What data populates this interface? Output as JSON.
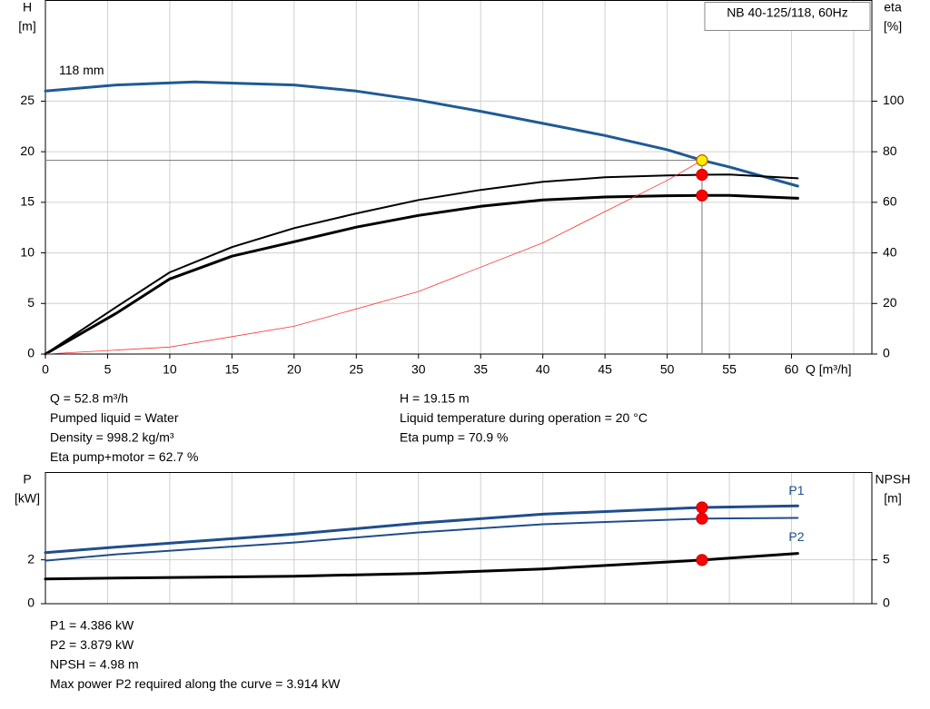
{
  "chart_data": [
    {
      "type": "line",
      "title": "NB 40-125/118, 60Hz",
      "ylabel": [
        "H",
        "[m]"
      ],
      "y2label": [
        "eta",
        "[%]"
      ],
      "xlabel": "Q [m³/h]",
      "xlim": [
        0,
        65
      ],
      "xticks": [
        0,
        5,
        10,
        15,
        20,
        25,
        30,
        35,
        40,
        45,
        50,
        55,
        60
      ],
      "ylim": [
        0,
        35
      ],
      "yticks": [
        0,
        5,
        10,
        15,
        20,
        25
      ],
      "y2lim": [
        0,
        140
      ],
      "y2ticks": [
        0,
        20,
        40,
        60,
        80,
        100
      ],
      "grid": true,
      "highlight_x": 52.8,
      "reference_lines": true,
      "series": [
        {
          "name": "118 mm",
          "color": "#1f5a96",
          "line_width": 3,
          "marker_color": "#ffee00",
          "x": [
            0,
            5.7,
            12,
            20,
            25,
            30,
            35,
            40,
            45,
            50,
            52.8,
            55,
            60.5
          ],
          "values": [
            26.0,
            26.6,
            26.9,
            26.6,
            26.0,
            25.1,
            24.0,
            22.8,
            21.6,
            20.2,
            19.15,
            18.5,
            16.6
          ]
        },
        {
          "color": "#000000",
          "line_width": 2,
          "axis": "y2",
          "marker_color": "#ff0000",
          "x": [
            0,
            5.7,
            10,
            15,
            20,
            25,
            30,
            35,
            40,
            45,
            50,
            52.8,
            55,
            60.5
          ],
          "values": [
            0,
            18.6,
            32.3,
            42.3,
            49.8,
            55.6,
            60.9,
            64.9,
            68.1,
            69.9,
            70.6,
            70.9,
            71.0,
            69.5
          ]
        },
        {
          "color": "#000000",
          "line_width": 3,
          "axis": "y2",
          "marker_color": "#ff0000",
          "x": [
            0,
            5.7,
            10,
            15,
            20,
            25,
            30,
            35,
            40,
            45,
            50,
            52.8,
            55,
            60.5
          ],
          "values": [
            0,
            16.1,
            29.7,
            38.7,
            44.4,
            50.2,
            54.8,
            58.4,
            60.9,
            62.1,
            62.6,
            62.7,
            62.7,
            61.6
          ]
        },
        {
          "color": "#ff3030",
          "line_width": 0.8,
          "x": [
            0,
            10,
            20,
            30,
            40,
            50,
            52.8
          ],
          "values": [
            0,
            0.69,
            2.75,
            6.18,
            10.99,
            17.17,
            19.15
          ]
        }
      ],
      "info": [
        [
          "Q = 52.8 m³/h",
          "Pumped liquid = Water",
          "Density = 998.2 kg/m³",
          "Eta pump+motor = 62.7 %"
        ],
        [
          "H = 19.15 m",
          "Liquid temperature during operation = 20 °C",
          "Eta pump = 70.9 %"
        ]
      ]
    },
    {
      "type": "line",
      "ylabel": [
        "P",
        "[kW]"
      ],
      "y2label": [
        "NPSH",
        "[m]"
      ],
      "ylim": [
        0,
        6
      ],
      "yticks": [
        0,
        2
      ],
      "y2lim": [
        0,
        15
      ],
      "y2ticks": [
        0,
        5
      ],
      "grid": true,
      "highlight_x": 52.8,
      "series": [
        {
          "name": "P1",
          "color": "#1f4e8c",
          "line_width": 3,
          "marker_color": "#ff0000",
          "x": [
            0,
            5.7,
            20,
            30,
            40,
            52.8,
            60.5
          ],
          "values": [
            2.33,
            2.58,
            3.17,
            3.67,
            4.08,
            4.386,
            4.46
          ]
        },
        {
          "name": "P2",
          "color": "#1f4e8c",
          "line_width": 2,
          "marker_color": "#ff0000",
          "x": [
            0,
            5.7,
            20,
            30,
            40,
            52.8,
            60.5
          ],
          "values": [
            1.96,
            2.25,
            2.79,
            3.25,
            3.62,
            3.879,
            3.91
          ]
        },
        {
          "color": "#000000",
          "line_width": 3,
          "axis": "y2",
          "marker_color": "#ff0000",
          "x": [
            0,
            5.7,
            20,
            30,
            40,
            52.8,
            60.5
          ],
          "values": [
            2.81,
            2.92,
            3.13,
            3.44,
            3.96,
            4.98,
            5.73
          ]
        }
      ],
      "info": [
        [
          "P1 = 4.386 kW",
          "P2 = 3.879 kW",
          "NPSH = 4.98 m",
          "Max power P2 required along the curve = 3.914 kW"
        ]
      ]
    }
  ]
}
